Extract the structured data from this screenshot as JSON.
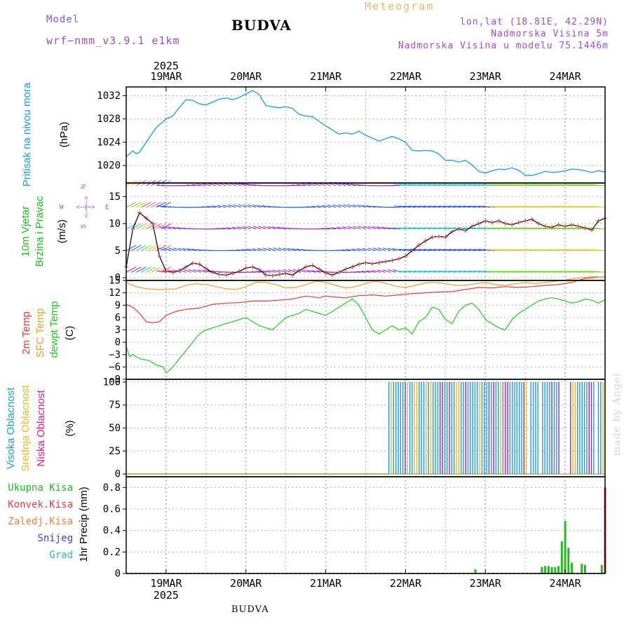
{
  "header": {
    "model_label": "Model",
    "model_name": "wrf−nmm_v3.9.1  e1km",
    "station": "BUDVA",
    "meteogram": "Meteogram",
    "lonlat": "lon,lat (18.81E, 42.29N)",
    "elevation": "Nadmorska Visina 5m",
    "model_elevation": "Nadmorska Visina u modelu 75.1446m"
  },
  "footer": {
    "station": "BUDVA",
    "made_by": "made by Angel"
  },
  "colors": {
    "pressure": "#1e9be8",
    "t2m": "#e83c3c",
    "sfc": "#e8a030",
    "dewpt": "#22cc22",
    "cloud_high": "#1e9be8",
    "cloud_mid": "#e8b830",
    "cloud_low": "#a020c0",
    "wind_speed": "#000000",
    "wind_marker": "#e83c3c"
  },
  "chart_data": [
    {
      "type": "line",
      "panel": "pressure",
      "ylabel": [
        "Pritisak na nivou mora",
        "(hPa)"
      ],
      "ylim": [
        1017,
        1033.5
      ],
      "yticks": [
        1020,
        1024,
        1028,
        1032
      ],
      "x_date_labels": [
        "19MAR",
        "20MAR",
        "21MAR",
        "22MAR",
        "23MAR",
        "24MAR"
      ],
      "x_year": "2025",
      "x_range_hours": [
        -12,
        132
      ],
      "series": [
        {
          "color": "pressure",
          "x": [
            -12,
            -10,
            -9,
            -8,
            -6,
            -3,
            0,
            2,
            4,
            6,
            8,
            10,
            12,
            14,
            16,
            18,
            20,
            22,
            24,
            26,
            28,
            30,
            32,
            34,
            36,
            38,
            40,
            42,
            44,
            46,
            48,
            50,
            52,
            54,
            56,
            58,
            60,
            62,
            64,
            66,
            68,
            70,
            72,
            74,
            76,
            78,
            80,
            82,
            84,
            86,
            88,
            90,
            92,
            94,
            96,
            98,
            100,
            102,
            104,
            106,
            108,
            110,
            112,
            114,
            116,
            118,
            120,
            122,
            124,
            126,
            128,
            130,
            132
          ],
          "values": [
            1021.5,
            1022.5,
            1022,
            1022.3,
            1024,
            1026.5,
            1028,
            1028.5,
            1030,
            1031.3,
            1031.2,
            1030.6,
            1030.4,
            1030.9,
            1031.4,
            1031.6,
            1031.3,
            1031.7,
            1032.3,
            1032.9,
            1032.2,
            1030.3,
            1030.1,
            1029.9,
            1030.1,
            1029.8,
            1028.8,
            1028.5,
            1028.4,
            1027.6,
            1026.8,
            1026.1,
            1025.4,
            1025.6,
            1025.4,
            1025.9,
            1025.2,
            1024.7,
            1024.2,
            1024.6,
            1025,
            1024.6,
            1024,
            1022.6,
            1022.5,
            1022.6,
            1022.5,
            1022,
            1020.9,
            1020.9,
            1020.6,
            1020.9,
            1020.1,
            1019,
            1018.7,
            1019.1,
            1019.4,
            1019.3,
            1019.6,
            1019.2,
            1018.3,
            1018.3,
            1018.6,
            1019,
            1018.8,
            1018.9,
            1019.1,
            1019.4,
            1019.3,
            1019.1,
            1018.8,
            1019.1,
            1018.9
          ]
        }
      ]
    },
    {
      "type": "line",
      "panel": "wind",
      "ylabel": [
        "10m Vjetar",
        "Brzina i Pravac",
        "(m/s)"
      ],
      "compass": {
        "n": "N",
        "w": "W",
        "e": "E",
        "s": "S",
        "line": "<—|—>"
      },
      "ylim": [
        -0.5,
        17.5
      ],
      "yticks": [
        0,
        5,
        10,
        15
      ],
      "barb_levels": [
        1,
        5,
        9,
        13,
        17
      ],
      "series": [
        {
          "name": "",
          "color": "wind_marker",
          "x": [
            -12,
            -10,
            -8,
            -6,
            -4,
            -2,
            0,
            2,
            4,
            6,
            8,
            10,
            12,
            14,
            16,
            18,
            20,
            22,
            24,
            26,
            28,
            30,
            32,
            34,
            36,
            38,
            40,
            42,
            44,
            46,
            48,
            50,
            52,
            54,
            56,
            58,
            60,
            62,
            64,
            66,
            68,
            70,
            72,
            74,
            76,
            78,
            80,
            82,
            84,
            86,
            88,
            90,
            92,
            94,
            96,
            98,
            100,
            102,
            104,
            106,
            108,
            110,
            112,
            114,
            116,
            118,
            120,
            122,
            124,
            126,
            128,
            130,
            132
          ],
          "values": [
            2,
            9,
            12,
            11,
            10,
            4,
            1.2,
            1,
            1.3,
            2,
            2.7,
            2.5,
            1.7,
            1,
            0.6,
            0.5,
            0.8,
            1.2,
            1.8,
            2,
            1.5,
            0.5,
            0.4,
            0.6,
            0.8,
            0.5,
            1.3,
            2,
            2.3,
            1.6,
            0.9,
            0.5,
            1,
            1.6,
            2,
            2.5,
            2.8,
            2.6,
            2.8,
            3,
            3.2,
            3.5,
            4,
            5,
            6,
            6.8,
            7.5,
            7.6,
            7.5,
            8.5,
            9,
            8.7,
            9.5,
            10,
            10.5,
            10.2,
            10.5,
            10,
            9.8,
            10.2,
            10.5,
            10.8,
            10,
            9.5,
            9.3,
            9.8,
            9.5,
            9.8,
            9.5,
            9.2,
            8.8,
            10.5,
            11
          ]
        }
      ]
    },
    {
      "type": "line",
      "panel": "temperature",
      "ylabel": [
        "2m Temp",
        "SFC Temp",
        "dewpt Temp",
        "(C)"
      ],
      "ylim": [
        -9,
        15
      ],
      "yticks": [
        -9,
        -6,
        -3,
        0,
        3,
        6,
        9,
        12,
        15
      ],
      "series": [
        {
          "name": "2m Temp",
          "color": "t2m",
          "x": [
            -12,
            -10,
            -8,
            -6,
            -4,
            -2,
            0,
            3,
            6,
            10,
            14,
            18,
            22,
            26,
            30,
            34,
            38,
            42,
            46,
            48,
            50,
            54,
            58,
            62,
            66,
            70,
            74,
            78,
            82,
            86,
            90,
            94,
            98,
            102,
            106,
            110,
            114,
            118,
            122,
            126,
            130,
            132
          ],
          "values": [
            9.2,
            8.5,
            7,
            5,
            4.7,
            5,
            6.5,
            7.5,
            8,
            8.3,
            9.2,
            9.5,
            9.6,
            10,
            10,
            10.2,
            10.5,
            11.2,
            10.8,
            11.2,
            11,
            10.8,
            11.3,
            11.5,
            11.2,
            11.5,
            11.8,
            12,
            12.2,
            12.3,
            12.8,
            13.3,
            13.2,
            13.5,
            13.3,
            13.5,
            13.8,
            14,
            14.5,
            15.5,
            15.8,
            15.9
          ]
        },
        {
          "name": "SFC Temp",
          "color": "sfc",
          "x": [
            -12,
            -9,
            -6,
            -3,
            0,
            3,
            6,
            9,
            12,
            15,
            18,
            21,
            24,
            27,
            30,
            33,
            36,
            39,
            42,
            45,
            48,
            51,
            54,
            57,
            60,
            63,
            66,
            69,
            72,
            75,
            78,
            81,
            84,
            87,
            90,
            93,
            96,
            99,
            102,
            105,
            108,
            111,
            114,
            117,
            120,
            123,
            126,
            129,
            132
          ],
          "values": [
            14.5,
            13.5,
            13,
            12.8,
            12.8,
            13,
            13.8,
            14.2,
            14,
            13.5,
            13,
            12.8,
            13.5,
            14.6,
            14.5,
            14,
            13.2,
            13.3,
            14,
            14.8,
            14.5,
            13.8,
            13.2,
            13.5,
            14.3,
            14.8,
            14.3,
            13.6,
            13.3,
            13.8,
            14.4,
            14.5,
            14.2,
            13.8,
            13.8,
            14.2,
            14.5,
            14,
            13.8,
            14.2,
            14.5,
            14.2,
            14.5,
            14.8,
            15.1,
            15.5,
            15.8,
            15.9,
            15.8
          ]
        },
        {
          "name": "dewpt Temp",
          "color": "dewpt",
          "x": [
            -12,
            -11,
            -10,
            -8,
            -5,
            -3,
            -1,
            0,
            2,
            4,
            6,
            8,
            10,
            12,
            14,
            16,
            18,
            20,
            22,
            24,
            26,
            28,
            30,
            32,
            34,
            36,
            38,
            40,
            42,
            44,
            46,
            48,
            50,
            52,
            54,
            56,
            58,
            60,
            62,
            64,
            66,
            68,
            70,
            72,
            74,
            76,
            78,
            80,
            82,
            84,
            86,
            88,
            90,
            92,
            94,
            96,
            98,
            100,
            102,
            104,
            106,
            108,
            110,
            112,
            114,
            116,
            118,
            120,
            122,
            124,
            126,
            128,
            130,
            132
          ],
          "values": [
            -1,
            -3.5,
            -3,
            -4,
            -4.5,
            -5.5,
            -6,
            -7.5,
            -6,
            -4,
            -2,
            0,
            2,
            3,
            3.5,
            4,
            4.5,
            5,
            5.5,
            6,
            5,
            4,
            3.5,
            3,
            4.5,
            6,
            6.5,
            7,
            8,
            7.5,
            7,
            6.5,
            7.5,
            8.5,
            9.5,
            10.5,
            9,
            6,
            3,
            2,
            3,
            4,
            3,
            3.5,
            2,
            5,
            6,
            8.5,
            8,
            5.5,
            4.5,
            7.5,
            9,
            9.5,
            8,
            5.5,
            4.5,
            3.5,
            3,
            5.5,
            7,
            8,
            9,
            10,
            10.5,
            10.8,
            10.5,
            10,
            9.5,
            9.8,
            10.5,
            10.2,
            9.5,
            10.3
          ]
        }
      ]
    },
    {
      "type": "bar",
      "panel": "clouds",
      "ylabel": [
        "Visoka Oblacnost",
        "Srednja Oblacnost",
        "Niska Oblacnost",
        "(%)"
      ],
      "ylim": [
        -3,
        103
      ],
      "yticks": [
        0,
        25,
        50,
        75,
        100
      ],
      "cloud_start_hour": 67,
      "series": [
        {
          "name": "Visoka Oblacnost",
          "color": "cloud_high",
          "description": "high cloud ~100% intermittent from 22MAR through 24MAR"
        },
        {
          "name": "Srednja Oblacnost",
          "color": "cloud_mid",
          "description": "mid cloud ~100% intermittent 22MAR to 23MAR"
        },
        {
          "name": "Niska Oblacnost",
          "color": "cloud_low",
          "description": "low cloud ~100% sparse 23MAR to 24MAR"
        }
      ]
    },
    {
      "type": "bar",
      "panel": "precip",
      "ylabel": [
        "1hr Precip (mm)"
      ],
      "legend": [
        "Ukupna Kisa",
        "Konvek.Kisa",
        "Zaledj.Kisa",
        "Snijeg",
        "Grad"
      ],
      "legend_colors": [
        "#22bb22",
        "#e83c3c",
        "#f08040",
        "#4040e0",
        "#20c0c0"
      ],
      "ylim": [
        0,
        0.9
      ],
      "yticks": [
        0,
        0.2,
        0.4,
        0.6,
        0.8
      ],
      "x": [
        93,
        113,
        114,
        115,
        116,
        117,
        118,
        119,
        120,
        121,
        122,
        123,
        125,
        126,
        131,
        132
      ],
      "values": [
        0.04,
        0.06,
        0.07,
        0.07,
        0.06,
        0.06,
        0.07,
        0.3,
        0.49,
        0.24,
        0.1,
        0.0,
        0.09,
        0.08,
        0.08,
        0.8
      ]
    }
  ]
}
